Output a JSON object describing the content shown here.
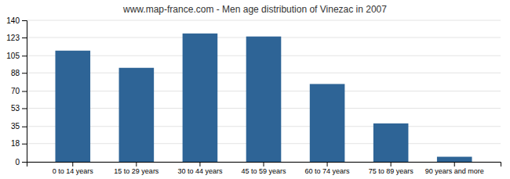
{
  "chart_data": {
    "type": "bar",
    "title": "www.map-france.com - Men age distribution of Vinezac in 2007",
    "categories": [
      "0 to 14 years",
      "15 to 29 years",
      "30 to 44 years",
      "45 to 59 years",
      "60 to 74 years",
      "75 to 89 years",
      "90 years and more"
    ],
    "values": [
      110,
      93,
      127,
      124,
      77,
      38,
      5
    ],
    "color": "#2e6496",
    "ylim": [
      0,
      140
    ],
    "yticks": [
      0,
      18,
      35,
      53,
      70,
      88,
      105,
      123,
      140
    ],
    "grid": true
  }
}
